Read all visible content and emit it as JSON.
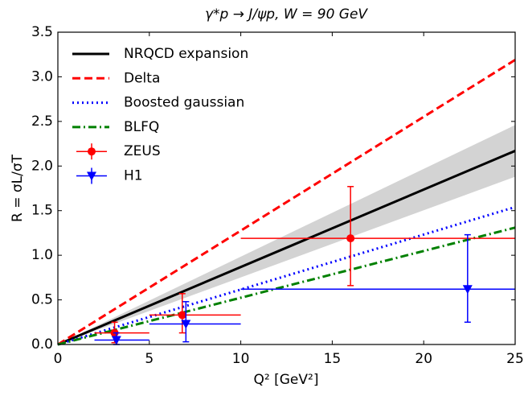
{
  "chart_data": {
    "type": "line",
    "title": "γ*p → J/ψp, W = 90 GeV",
    "xlabel": "Q² [GeV²]",
    "ylabel": "R = σL/σT",
    "xlim": [
      0,
      25
    ],
    "ylim": [
      0,
      3.5
    ],
    "xticks": [
      0,
      5,
      10,
      15,
      20,
      25
    ],
    "yticks": [
      {
        "value": 0,
        "label": "0.0"
      },
      0.5,
      {
        "value": 1,
        "label": "1.0"
      },
      1.5,
      {
        "value": 2,
        "label": "2.0"
      },
      2.5,
      {
        "value": 3,
        "label": "3.0"
      },
      3.5
    ],
    "legend": "upper left",
    "band": {
      "x": [
        0,
        25
      ],
      "lower": [
        0,
        1.88
      ],
      "upper": [
        0,
        2.46
      ],
      "color": "#d3d3d3"
    },
    "series": [
      {
        "name": "NRQCD expansion",
        "color": "#000000",
        "style": "solid",
        "x": [
          0,
          25
        ],
        "values": [
          0,
          2.17
        ]
      },
      {
        "name": "Delta",
        "color": "#ff0000",
        "style": "dashed",
        "x": [
          0,
          25
        ],
        "values": [
          0,
          3.19
        ]
      },
      {
        "name": "Boosted gaussian",
        "color": "#0000ff",
        "style": "dotted",
        "x": [
          0,
          25
        ],
        "values": [
          0,
          1.54
        ]
      },
      {
        "name": "BLFQ",
        "color": "#008000",
        "style": "dashdot",
        "x": [
          0,
          25
        ],
        "values": [
          0,
          1.31
        ]
      },
      {
        "name": "ZEUS",
        "color": "#ff0000",
        "style": "points",
        "marker": "o",
        "x": [
          3.1,
          6.8,
          16
        ],
        "values": [
          0.13,
          0.33,
          1.19
        ],
        "xlow": [
          2,
          5,
          10
        ],
        "xhigh": [
          5,
          10,
          25
        ],
        "ylow": [
          0.02,
          0.13,
          0.66
        ],
        "yhigh": [
          0.25,
          0.57,
          1.77
        ]
      },
      {
        "name": "H1",
        "color": "#0000ff",
        "style": "points",
        "marker": "v",
        "x": [
          3.2,
          7,
          22.4
        ],
        "values": [
          0.05,
          0.23,
          0.62
        ],
        "xlow": [
          2,
          5,
          10
        ],
        "xhigh": [
          5,
          10,
          25
        ],
        "ylow": [
          0,
          0.03,
          0.25
        ],
        "yhigh": [
          0.13,
          0.48,
          1.23
        ]
      }
    ]
  }
}
